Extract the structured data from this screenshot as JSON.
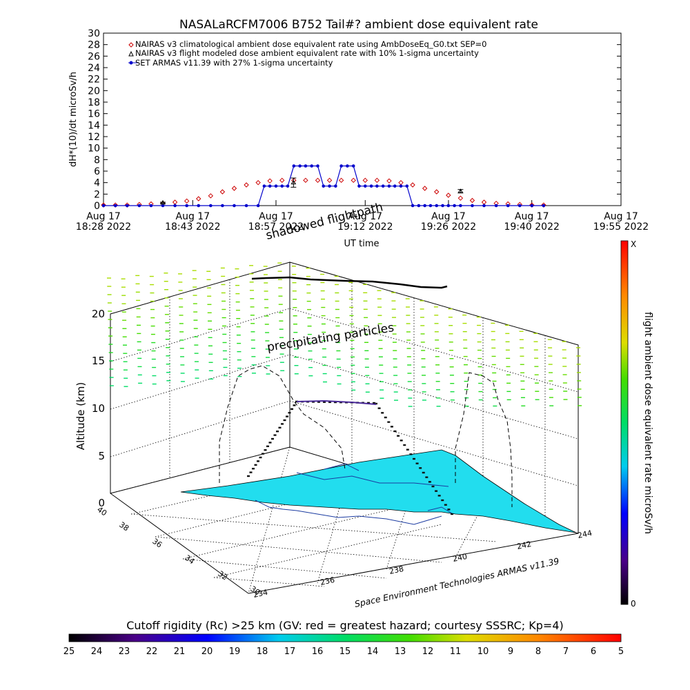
{
  "chart_data": [
    {
      "type": "line",
      "title": "NASALaRCFM7006  B752 Tail#? ambient dose equivalent rate",
      "xlabel": "UT time",
      "ylabel": "dH*(10)/dt microSv/h",
      "ylim": [
        0,
        30
      ],
      "yticks": [
        0,
        2,
        4,
        6,
        8,
        10,
        12,
        14,
        16,
        18,
        20,
        22,
        24,
        26,
        28,
        30
      ],
      "xlim": [
        18.4667,
        19.9167
      ],
      "xticks": [
        {
          "value": 18.4667,
          "line1": "Aug 17",
          "line2": "18:28 2022"
        },
        {
          "value": 18.7167,
          "line1": "Aug 17",
          "line2": "18:43 2022"
        },
        {
          "value": 18.95,
          "line1": "Aug 17",
          "line2": "18:57 2022"
        },
        {
          "value": 19.2,
          "line1": "Aug 17",
          "line2": "19:12 2022"
        },
        {
          "value": 19.4333,
          "line1": "Aug 17",
          "line2": "19:26 2022"
        },
        {
          "value": 19.6667,
          "line1": "Aug 17",
          "line2": "19:40 2022"
        },
        {
          "value": 19.9167,
          "line1": "Aug 17",
          "line2": "19:55 2022"
        }
      ],
      "legend": [
        {
          "symbol": "diamond",
          "color": "#cc0000",
          "label": "NAIRAS v3 climatological ambient dose equivalent rate using AmbDoseEq_G0.txt SEP=0"
        },
        {
          "symbol": "triangle",
          "color": "#000000",
          "label": "NAIRAS v3 flight modeled dose ambient equivalent rate with 10% 1-sigma uncertainty"
        },
        {
          "symbol": "dot",
          "color": "#0000cc",
          "label": "SET ARMAS v11.39 with 27% 1-sigma uncertainty"
        }
      ],
      "series": [
        {
          "name": "NAIRAS v3 climatological ambient dose equivalent rate using AmbDoseEq_G0.txt SEP=0",
          "color": "#cc0000",
          "x": [
            18.4667,
            18.5,
            18.533,
            18.567,
            18.6,
            18.633,
            18.667,
            18.7,
            18.733,
            18.767,
            18.8,
            18.833,
            18.867,
            18.9,
            18.933,
            18.967,
            19.0,
            19.033,
            19.067,
            19.1,
            19.133,
            19.167,
            19.2,
            19.233,
            19.267,
            19.3,
            19.333,
            19.367,
            19.4,
            19.433,
            19.467,
            19.5,
            19.533,
            19.567,
            19.6,
            19.633,
            19.667,
            19.7
          ],
          "values": [
            0.1,
            0.1,
            0.1,
            0.2,
            0.3,
            0.4,
            0.6,
            0.8,
            1.2,
            1.7,
            2.4,
            3.0,
            3.6,
            4.0,
            4.3,
            4.4,
            4.4,
            4.4,
            4.4,
            4.4,
            4.4,
            4.4,
            4.4,
            4.4,
            4.3,
            4.0,
            3.6,
            3.0,
            2.4,
            1.8,
            1.3,
            0.9,
            0.6,
            0.4,
            0.3,
            0.2,
            0.1,
            0.1
          ]
        },
        {
          "name": "NAIRAS v3 flight modeled dose ambient equivalent rate with 10% 1-sigma uncertainty",
          "color": "#000000",
          "x": [
            18.633,
            18.999,
            19.467
          ],
          "values": [
            0.5,
            4.0,
            2.5
          ],
          "errors": [
            0.1,
            0.8,
            0.3
          ]
        },
        {
          "name": "SET ARMAS v11.39 with 27% 1-sigma uncertainty",
          "color": "#0000cc",
          "x": [
            18.4667,
            18.5,
            18.533,
            18.567,
            18.6,
            18.633,
            18.667,
            18.7,
            18.733,
            18.767,
            18.8,
            18.833,
            18.867,
            18.9,
            18.917,
            18.933,
            18.95,
            18.967,
            18.983,
            19.0,
            19.017,
            19.033,
            19.05,
            19.067,
            19.083,
            19.1,
            19.117,
            19.133,
            19.15,
            19.167,
            19.183,
            19.2,
            19.217,
            19.233,
            19.25,
            19.267,
            19.283,
            19.3,
            19.317,
            19.333,
            19.35,
            19.367,
            19.383,
            19.4,
            19.417,
            19.433,
            19.45,
            19.467,
            19.5,
            19.533,
            19.567,
            19.6,
            19.633,
            19.667,
            19.7
          ],
          "values": [
            0,
            0,
            0,
            0,
            0,
            0,
            0,
            0,
            0,
            0,
            0,
            0,
            0,
            0,
            3.4,
            3.4,
            3.4,
            3.4,
            3.4,
            6.9,
            6.9,
            6.9,
            6.9,
            6.9,
            3.4,
            3.4,
            3.4,
            6.9,
            6.9,
            6.9,
            3.4,
            3.4,
            3.4,
            3.4,
            3.4,
            3.4,
            3.4,
            3.4,
            3.4,
            0,
            0,
            0,
            0,
            0,
            0,
            0,
            0,
            0,
            0,
            0,
            0,
            0,
            0,
            0,
            0
          ]
        }
      ]
    },
    {
      "type": "scatter",
      "title": "",
      "zlabel": "Altitude (km)",
      "zticks": [
        "0",
        "5",
        "10",
        "15",
        "20"
      ],
      "lat_ticks": [
        "40",
        "38",
        "36",
        "34",
        "32",
        "30"
      ],
      "lon_ticks": [
        "234",
        "236",
        "238",
        "240",
        "242",
        "244"
      ],
      "annotations": [
        "shadowed flightpath",
        "precipitating particles"
      ],
      "credit": "Space Environment Technologies ARMAS v11.39",
      "colorbar_label": "flight ambient dose equivalent rate microSv/h",
      "colorbar_top": "X",
      "colorbar_bottom": "0",
      "surface_color": "#22ddee"
    }
  ],
  "bottom_colorbar": {
    "title": "Cutoff rigidity (Rc) >25 km (GV: red = greatest hazard; courtesy SSSRC; Kp=4)",
    "ticks": [
      "25",
      "24",
      "23",
      "22",
      "21",
      "20",
      "19",
      "18",
      "17",
      "16",
      "15",
      "14",
      "13",
      "12",
      "11",
      "10",
      "9",
      "8",
      "7",
      "6",
      "5"
    ]
  }
}
